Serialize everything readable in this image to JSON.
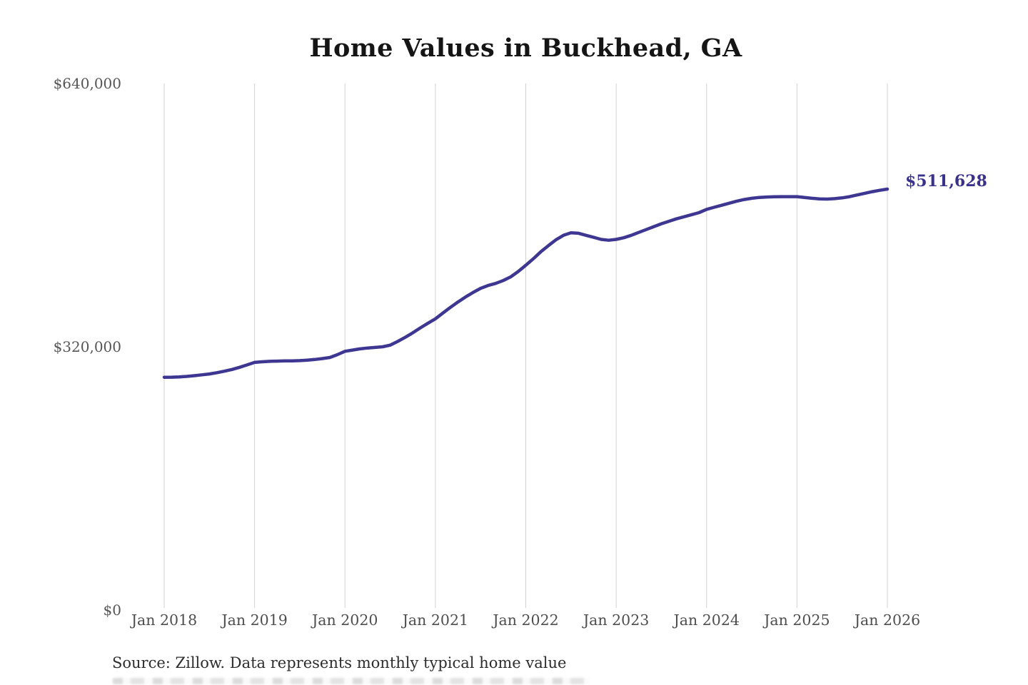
{
  "chart": {
    "title": "Home Values in Buckhead, GA",
    "end_label": "$511,628",
    "source_note": "Source: Zillow. Data represents monthly typical home value",
    "y_axis": {
      "ticks": [
        {
          "label": "$0",
          "value": 0
        },
        {
          "label": "$320,000",
          "value": 320000
        },
        {
          "label": "$640,000",
          "value": 640000
        }
      ]
    },
    "x_axis": {
      "ticks": [
        {
          "label": "Jan 2018",
          "month_index": 0
        },
        {
          "label": "Jan 2019",
          "month_index": 12
        },
        {
          "label": "Jan 2020",
          "month_index": 24
        },
        {
          "label": "Jan 2021",
          "month_index": 36
        },
        {
          "label": "Jan 2022",
          "month_index": 48
        },
        {
          "label": "Jan 2023",
          "month_index": 60
        },
        {
          "label": "Jan 2024",
          "month_index": 72
        },
        {
          "label": "Jan 2025",
          "month_index": 84
        },
        {
          "label": "Jan 2026",
          "month_index": 96
        }
      ]
    },
    "colors": {
      "line": "#3e3792",
      "end_label": "#39318a",
      "grid": "#d2d2d2",
      "axis_text": "#565656",
      "title_text": "#151515",
      "source_text": "#2d2d2d"
    }
  },
  "chart_data": {
    "type": "line",
    "title": "Home Values in Buckhead, GA",
    "xlabel": "",
    "ylabel": "",
    "ylim": [
      0,
      640000
    ],
    "grid": "vertical-only",
    "legend": "none",
    "final_value": 511628,
    "x_freq": "monthly",
    "months": [
      "2018-01",
      "2018-02",
      "2018-03",
      "2018-04",
      "2018-05",
      "2018-06",
      "2018-07",
      "2018-08",
      "2018-09",
      "2018-10",
      "2018-11",
      "2018-12",
      "2019-01",
      "2019-02",
      "2019-03",
      "2019-04",
      "2019-05",
      "2019-06",
      "2019-07",
      "2019-08",
      "2019-09",
      "2019-10",
      "2019-11",
      "2019-12",
      "2020-01",
      "2020-02",
      "2020-03",
      "2020-04",
      "2020-05",
      "2020-06",
      "2020-07",
      "2020-08",
      "2020-09",
      "2020-10",
      "2020-11",
      "2020-12",
      "2021-01",
      "2021-02",
      "2021-03",
      "2021-04",
      "2021-05",
      "2021-06",
      "2021-07",
      "2021-08",
      "2021-09",
      "2021-10",
      "2021-11",
      "2021-12",
      "2022-01",
      "2022-02",
      "2022-03",
      "2022-04",
      "2022-05",
      "2022-06",
      "2022-07",
      "2022-08",
      "2022-09",
      "2022-10",
      "2022-11",
      "2022-12",
      "2023-01",
      "2023-02",
      "2023-03",
      "2023-04",
      "2023-05",
      "2023-06",
      "2023-07",
      "2023-08",
      "2023-09",
      "2023-10",
      "2023-11",
      "2023-12",
      "2024-01",
      "2024-02",
      "2024-03",
      "2024-04",
      "2024-05",
      "2024-06",
      "2024-07",
      "2024-08",
      "2024-09",
      "2024-10",
      "2024-11",
      "2024-12",
      "2025-01",
      "2025-02",
      "2025-03",
      "2025-04",
      "2025-05",
      "2025-06",
      "2025-07",
      "2025-08",
      "2025-09",
      "2025-10",
      "2025-11",
      "2025-12",
      "2026-01"
    ],
    "values": [
      283000,
      283100,
      283400,
      284000,
      284900,
      285900,
      287000,
      288500,
      290300,
      292400,
      295000,
      298000,
      301000,
      301800,
      302300,
      302600,
      302800,
      302900,
      303200,
      303800,
      304600,
      305700,
      307000,
      310500,
      314500,
      316000,
      317500,
      318500,
      319200,
      320000,
      322000,
      326500,
      331500,
      337000,
      343000,
      348500,
      354000,
      361000,
      368000,
      374500,
      380500,
      386000,
      391000,
      394500,
      397000,
      400500,
      405000,
      411500,
      419000,
      427000,
      435500,
      443000,
      450000,
      455500,
      458500,
      458000,
      455500,
      453000,
      450500,
      449500,
      450500,
      452500,
      455500,
      459000,
      462500,
      466000,
      469500,
      472500,
      475500,
      478000,
      480500,
      483000,
      487000,
      489500,
      492000,
      494500,
      497000,
      499000,
      500500,
      501500,
      502000,
      502300,
      502500,
      502500,
      502500,
      501500,
      500500,
      499800,
      499500,
      500000,
      501000,
      502500,
      504500,
      506500,
      508500,
      510200,
      511628
    ]
  }
}
